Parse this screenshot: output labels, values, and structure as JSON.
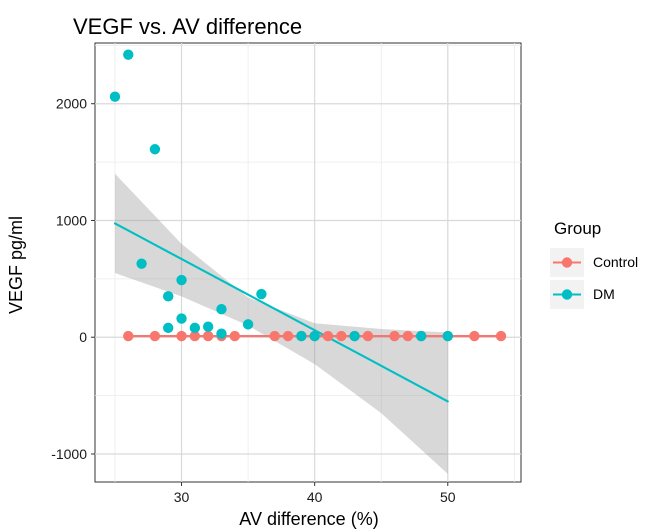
{
  "chart_data": {
    "type": "scatter",
    "title": "VEGF vs. AV difference",
    "xlabel": "AV difference (%)",
    "ylabel": "VEGF pg/ml",
    "xlim": [
      23.5,
      55.5
    ],
    "ylim": [
      -1240,
      2520
    ],
    "x_ticks": [
      30,
      40,
      50
    ],
    "y_ticks": [
      -1000,
      0,
      1000,
      2000
    ],
    "x_tick_labels": [
      "30",
      "40",
      "50"
    ],
    "y_tick_labels": [
      "-1000",
      "0",
      "1000",
      "2000"
    ],
    "grid": true,
    "legend": {
      "title": "Group",
      "position": "right",
      "entries": [
        "Control",
        "DM"
      ]
    },
    "series": [
      {
        "name": "Control",
        "color": "#F8766D",
        "points": [
          {
            "x": 26,
            "y": 10
          },
          {
            "x": 28,
            "y": 10
          },
          {
            "x": 30,
            "y": 10
          },
          {
            "x": 31,
            "y": 10
          },
          {
            "x": 32,
            "y": 10
          },
          {
            "x": 33,
            "y": 10
          },
          {
            "x": 34,
            "y": 10
          },
          {
            "x": 37,
            "y": 10
          },
          {
            "x": 38,
            "y": 10
          },
          {
            "x": 39,
            "y": 10
          },
          {
            "x": 40,
            "y": 10
          },
          {
            "x": 41,
            "y": 10
          },
          {
            "x": 42,
            "y": 10
          },
          {
            "x": 43,
            "y": 10
          },
          {
            "x": 44,
            "y": 10
          },
          {
            "x": 46,
            "y": 10
          },
          {
            "x": 47,
            "y": 10
          },
          {
            "x": 48,
            "y": 10
          },
          {
            "x": 50,
            "y": 10
          },
          {
            "x": 52,
            "y": 10
          },
          {
            "x": 54,
            "y": 10
          }
        ],
        "fit": {
          "x": [
            26,
            54
          ],
          "y": [
            10,
            10
          ]
        }
      },
      {
        "name": "DM",
        "color": "#00BFC4",
        "points": [
          {
            "x": 25,
            "y": 2060
          },
          {
            "x": 26,
            "y": 2420
          },
          {
            "x": 27,
            "y": 630
          },
          {
            "x": 28,
            "y": 1610
          },
          {
            "x": 29,
            "y": 350
          },
          {
            "x": 29,
            "y": 80
          },
          {
            "x": 30,
            "y": 490
          },
          {
            "x": 30,
            "y": 160
          },
          {
            "x": 31,
            "y": 80
          },
          {
            "x": 32,
            "y": 90
          },
          {
            "x": 33,
            "y": 240
          },
          {
            "x": 33,
            "y": 30
          },
          {
            "x": 35,
            "y": 110
          },
          {
            "x": 36,
            "y": 370
          },
          {
            "x": 39,
            "y": 10
          },
          {
            "x": 40,
            "y": 10
          },
          {
            "x": 43,
            "y": 10
          },
          {
            "x": 48,
            "y": 10
          },
          {
            "x": 50,
            "y": 10
          }
        ],
        "fit": {
          "x": [
            25,
            50
          ],
          "y": [
            975,
            -550
          ]
        },
        "confidence_band": {
          "x": [
            25,
            30,
            35,
            40,
            45,
            50
          ],
          "upper": [
            1400,
            800,
            340,
            120,
            70,
            40
          ],
          "lower": [
            550,
            350,
            100,
            -230,
            -650,
            -1170
          ]
        }
      }
    ]
  }
}
